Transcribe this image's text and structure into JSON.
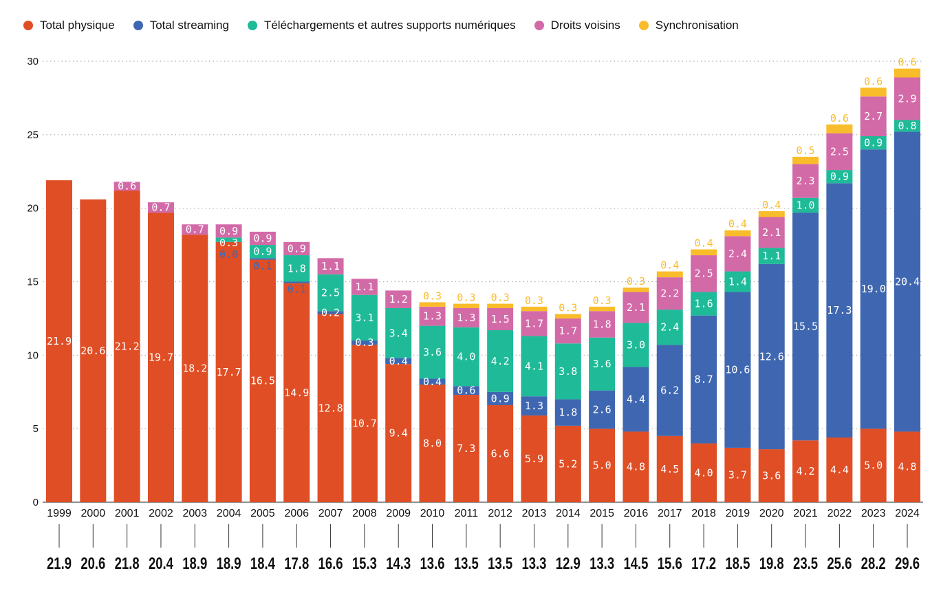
{
  "chart_data": {
    "type": "bar",
    "stacked": true,
    "title": "",
    "xlabel": "",
    "ylabel": "",
    "ylim": [
      0,
      30
    ],
    "yticks": [
      0,
      5,
      10,
      15,
      20,
      25,
      30
    ],
    "grid": true,
    "legend_placement": "top-left",
    "categories": [
      "1999",
      "2000",
      "2001",
      "2002",
      "2003",
      "2004",
      "2005",
      "2006",
      "2007",
      "2008",
      "2009",
      "2010",
      "2011",
      "2012",
      "2013",
      "2014",
      "2015",
      "2016",
      "2017",
      "2018",
      "2019",
      "2020",
      "2021",
      "2022",
      "2023",
      "2024"
    ],
    "series": [
      {
        "name": "Total physique",
        "color": "#e04e25",
        "values": [
          21.9,
          20.6,
          21.2,
          19.7,
          18.2,
          17.7,
          16.5,
          14.9,
          12.8,
          10.7,
          9.4,
          8.0,
          7.3,
          6.6,
          5.9,
          5.2,
          5.0,
          4.8,
          4.5,
          4.0,
          3.7,
          3.6,
          4.2,
          4.4,
          5.0,
          4.8
        ]
      },
      {
        "name": "Total streaming",
        "color": "#3f67b1",
        "values": [
          null,
          null,
          null,
          null,
          null,
          0.0,
          0.1,
          0.1,
          0.2,
          0.3,
          0.4,
          0.4,
          0.6,
          0.9,
          1.3,
          1.8,
          2.6,
          4.4,
          6.2,
          8.7,
          10.6,
          12.6,
          15.5,
          17.3,
          19.0,
          20.4
        ]
      },
      {
        "name": "Téléchargements et autres supports numériques",
        "color": "#1fba98",
        "values": [
          null,
          null,
          null,
          null,
          null,
          0.3,
          0.9,
          1.8,
          2.5,
          3.1,
          3.4,
          3.6,
          4.0,
          4.2,
          4.1,
          3.8,
          3.6,
          3.0,
          2.4,
          1.6,
          1.4,
          1.1,
          1.0,
          0.9,
          0.9,
          0.8
        ]
      },
      {
        "name": "Droits voisins",
        "color": "#d36aa8",
        "values": [
          null,
          null,
          0.6,
          0.7,
          0.7,
          0.9,
          0.9,
          0.9,
          1.1,
          1.1,
          1.2,
          1.3,
          1.3,
          1.5,
          1.7,
          1.7,
          1.8,
          2.1,
          2.2,
          2.5,
          2.4,
          2.1,
          2.3,
          2.5,
          2.7,
          2.9
        ]
      },
      {
        "name": "Synchronisation",
        "color": "#f9bc2a",
        "values": [
          null,
          null,
          null,
          null,
          null,
          null,
          null,
          null,
          null,
          null,
          null,
          0.3,
          0.3,
          0.3,
          0.3,
          0.3,
          0.3,
          0.3,
          0.4,
          0.4,
          0.4,
          0.4,
          0.5,
          0.6,
          0.6,
          0.6
        ]
      }
    ],
    "totals": [
      "21.9",
      "20.6",
      "21.8",
      "20.4",
      "18.9",
      "18.9",
      "18.4",
      "17.8",
      "16.6",
      "15.3",
      "14.3",
      "13.6",
      "13.5",
      "13.5",
      "13.3",
      "12.9",
      "13.3",
      "14.5",
      "15.6",
      "17.2",
      "18.5",
      "19.8",
      "23.5",
      "25.6",
      "28.2",
      "29.6"
    ]
  }
}
